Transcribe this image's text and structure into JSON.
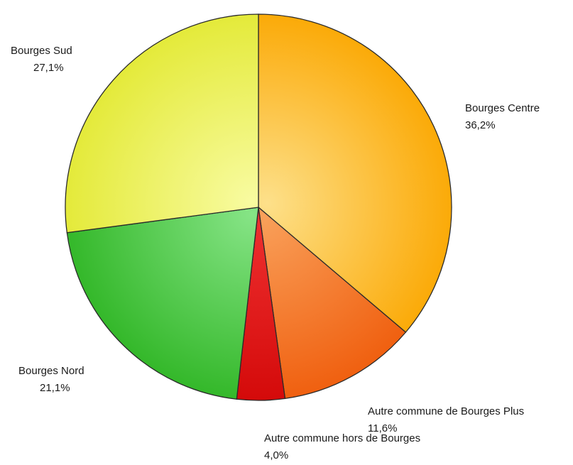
{
  "chart_data": {
    "type": "pie",
    "title": "",
    "slices": [
      {
        "label": "Bourges Centre",
        "value": 36.2,
        "value_text": "36,2%",
        "color_inner": "#fde08a",
        "color_outer": "#fbaa08"
      },
      {
        "label": "Autre commune de Bourges Plus",
        "value": 11.6,
        "value_text": "11,6%",
        "color_inner": "#f9a05a",
        "color_outer": "#f06010"
      },
      {
        "label": "Autre commune hors de Bourges",
        "value": 4.0,
        "value_text": "4,0%",
        "color_inner": "#ee3030",
        "color_outer": "#d40a0a"
      },
      {
        "label": "Bourges Nord",
        "value": 21.1,
        "value_text": "21,1%",
        "color_inner": "#86e486",
        "color_outer": "#34b82a"
      },
      {
        "label": "Bourges Sud",
        "value": 27.1,
        "value_text": "27,1%",
        "color_inner": "#f8fba0",
        "color_outer": "#e4ea3a"
      }
    ],
    "start_angle_deg": 0,
    "direction": "clockwise",
    "legend": "none"
  }
}
